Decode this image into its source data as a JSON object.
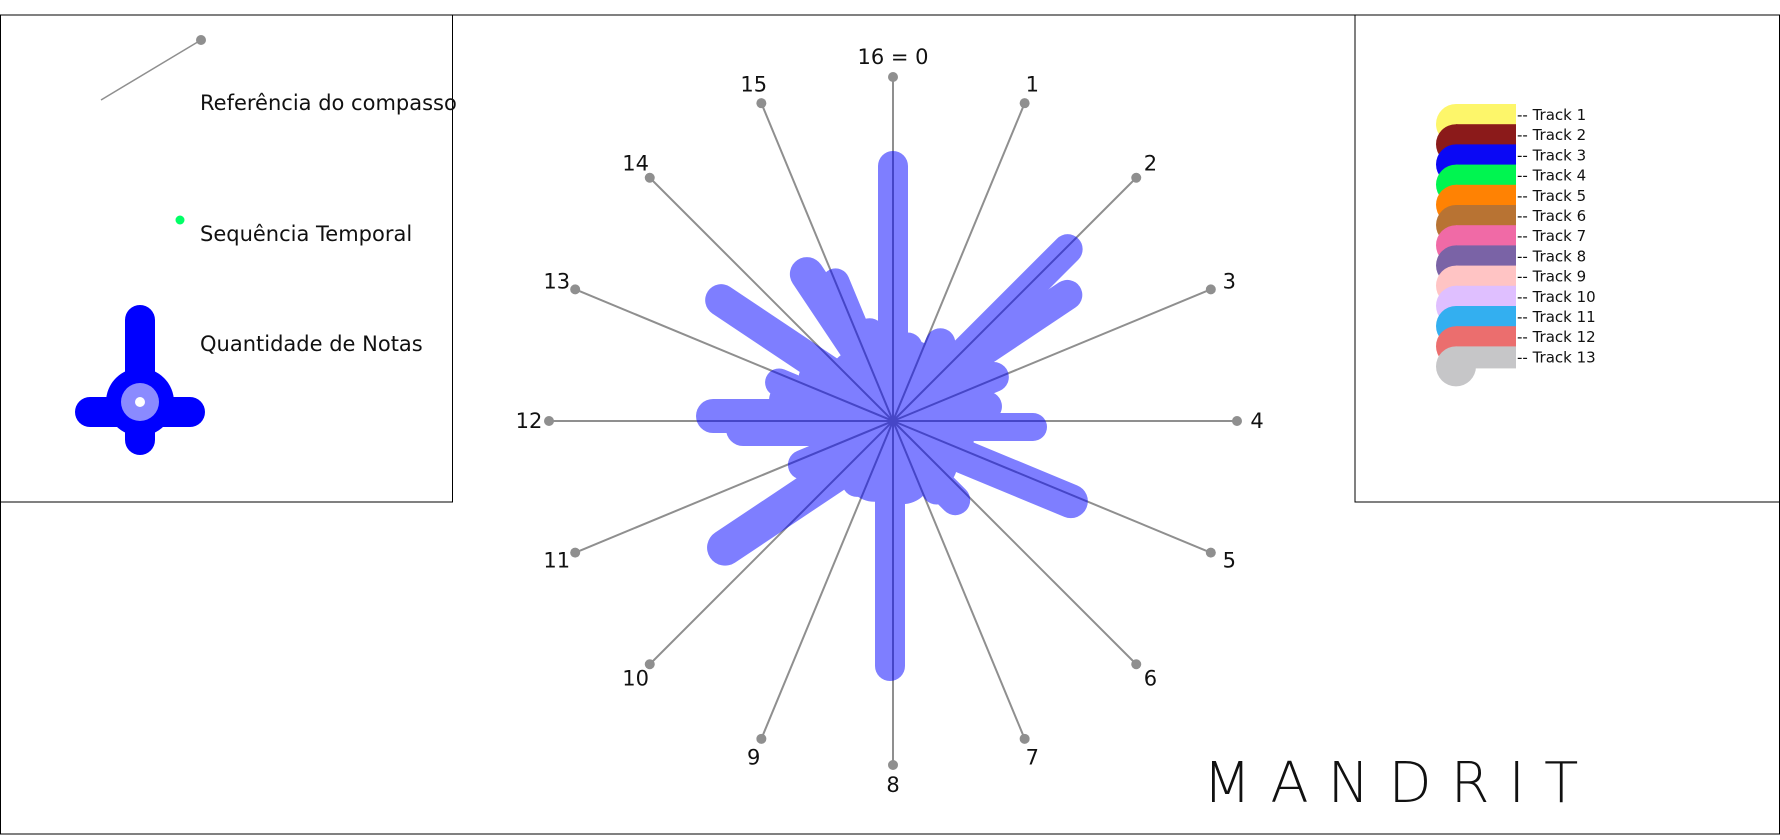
{
  "legend": {
    "measure_reference": "Referência do compasso",
    "time_sequence": "Sequência Temporal",
    "note_quantity": "Quantidade de Notas"
  },
  "beats": [
    "16 = 0",
    "1",
    "2",
    "3",
    "4",
    "5",
    "6",
    "7",
    "8",
    "9",
    "10",
    "11",
    "12",
    "13",
    "14",
    "15"
  ],
  "tracks": [
    {
      "label": "-- Track 1",
      "color": "#fdf66a"
    },
    {
      "label": "-- Track 2",
      "color": "#8b1a1a"
    },
    {
      "label": "-- Track 3",
      "color": "#0a08f5"
    },
    {
      "label": "-- Track 4",
      "color": "#00f550"
    },
    {
      "label": "-- Track 5",
      "color": "#ff8203"
    },
    {
      "label": "-- Track 6",
      "color": "#b87333"
    },
    {
      "label": "-- Track 7",
      "color": "#f06aa6"
    },
    {
      "label": "-- Track 8",
      "color": "#7a63a6"
    },
    {
      "label": "-- Track 9",
      "color": "#ffc4c4"
    },
    {
      "label": "-- Track 10",
      "color": "#dfbfff"
    },
    {
      "label": "-- Track 11",
      "color": "#33aff0"
    },
    {
      "label": "-- Track 12",
      "color": "#eb6e6e"
    },
    {
      "label": "-- Track 13",
      "color": "#c6c6c8"
    }
  ],
  "brand": "MANDRIT",
  "colors": {
    "note_blue": "#0000ff",
    "spoke_gray": "#8f8f8f",
    "time_dot_green": "#00ff66",
    "frame": "#000000"
  }
}
